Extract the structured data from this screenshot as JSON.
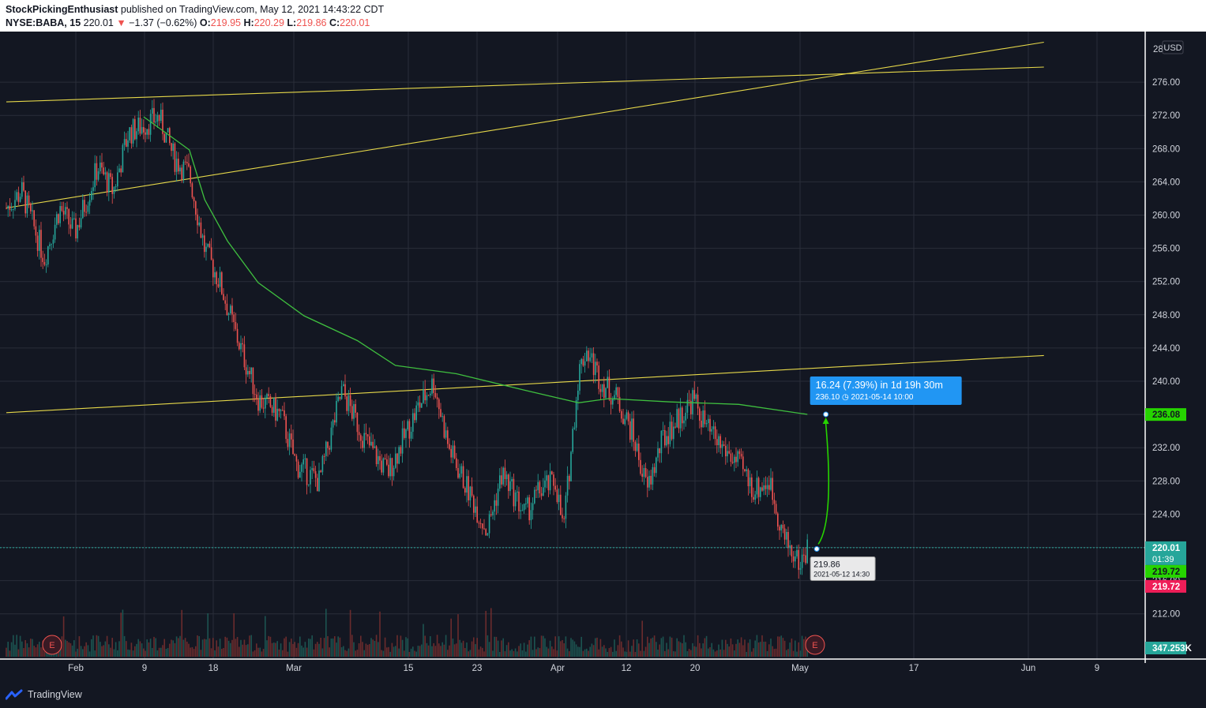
{
  "header": {
    "publisher": "StockPickingEnthusiast",
    "published_text": "published on TradingView.com, May 12, 2021 14:43:22 CDT",
    "symbol": "NYSE:BABA, 15",
    "last": "220.01",
    "change": "−1.37 (−0.62%)",
    "o_label": "O:",
    "o_value": "219.95",
    "h_label": "H:",
    "h_value": "220.29",
    "l_label": "L:",
    "l_value": "219.86",
    "c_label": "C:",
    "c_value": "220.01"
  },
  "price_axis": {
    "currency": "USD",
    "ticks": [
      "28",
      "276.00",
      "272.00",
      "268.00",
      "264.00",
      "260.00",
      "256.00",
      "252.00",
      "248.00",
      "244.00",
      "240.00",
      "236.00",
      "232.00",
      "228.00",
      "224.00",
      "220.00",
      "216.00",
      "212.00"
    ]
  },
  "badges": {
    "target": "236.08",
    "last_price": "220.01",
    "countdown": "01:39",
    "green_level": "219.72",
    "red_level": "219.72",
    "volume": "347.253K"
  },
  "time_axis": {
    "ticks": [
      "Feb",
      "9",
      "18",
      "Mar",
      "15",
      "23",
      "Apr",
      "12",
      "20",
      "May",
      "17",
      "Jun",
      "9"
    ]
  },
  "annotations": {
    "projection_main": "16.24 (7.39%) in 1d 19h 30m",
    "projection_sub": "236.10 ◷ 2021-05-14  10:00",
    "cursor_price": "219.86",
    "cursor_time": "2021-05-12 14:30",
    "earnings_marker": "E"
  },
  "footer": {
    "brand": "TradingView"
  },
  "colors": {
    "background": "#131722",
    "up": "#26a69a",
    "down": "#ef5350",
    "trendline": "#e6d84a",
    "moving_average": "#3fbf3f",
    "projection": "#26d400",
    "label_box": "#2196f3"
  },
  "chart_data": {
    "type": "candlestick",
    "symbol": "NYSE:BABA",
    "interval": "15",
    "ylim": [
      210,
      281
    ],
    "anchors": [
      {
        "date": "2021-01-27",
        "price": 261
      },
      {
        "date": "2021-01-29",
        "price": 263
      },
      {
        "date": "2021-02-01",
        "price": 255
      },
      {
        "date": "2021-02-03",
        "price": 261
      },
      {
        "date": "2021-02-05",
        "price": 258
      },
      {
        "date": "2021-02-08",
        "price": 266
      },
      {
        "date": "2021-02-10",
        "price": 263
      },
      {
        "date": "2021-02-12",
        "price": 270
      },
      {
        "date": "2021-02-16",
        "price": 272
      },
      {
        "date": "2021-02-18",
        "price": 267
      },
      {
        "date": "2021-02-20",
        "price": 265
      },
      {
        "date": "2021-02-22",
        "price": 256
      },
      {
        "date": "2021-02-24",
        "price": 252
      },
      {
        "date": "2021-02-26",
        "price": 246
      },
      {
        "date": "2021-03-01",
        "price": 238
      },
      {
        "date": "2021-03-04",
        "price": 236
      },
      {
        "date": "2021-03-06",
        "price": 230
      },
      {
        "date": "2021-03-09",
        "price": 228
      },
      {
        "date": "2021-03-12",
        "price": 239
      },
      {
        "date": "2021-03-15",
        "price": 233
      },
      {
        "date": "2021-03-18",
        "price": 229
      },
      {
        "date": "2021-03-22",
        "price": 237
      },
      {
        "date": "2021-03-24",
        "price": 240
      },
      {
        "date": "2021-03-26",
        "price": 232
      },
      {
        "date": "2021-03-29",
        "price": 226
      },
      {
        "date": "2021-03-31",
        "price": 222
      },
      {
        "date": "2021-04-02",
        "price": 229
      },
      {
        "date": "2021-04-05",
        "price": 224
      },
      {
        "date": "2021-04-07",
        "price": 227
      },
      {
        "date": "2021-04-09",
        "price": 228
      },
      {
        "date": "2021-04-10",
        "price": 222
      },
      {
        "date": "2021-04-12",
        "price": 241
      },
      {
        "date": "2021-04-13",
        "price": 244
      },
      {
        "date": "2021-04-15",
        "price": 240
      },
      {
        "date": "2021-04-17",
        "price": 238
      },
      {
        "date": "2021-04-19",
        "price": 234
      },
      {
        "date": "2021-04-21",
        "price": 227
      },
      {
        "date": "2021-04-23",
        "price": 233
      },
      {
        "date": "2021-04-27",
        "price": 238
      },
      {
        "date": "2021-04-29",
        "price": 234
      },
      {
        "date": "2021-05-01",
        "price": 232
      },
      {
        "date": "2021-05-03",
        "price": 230
      },
      {
        "date": "2021-05-05",
        "price": 227
      },
      {
        "date": "2021-05-07",
        "price": 228
      },
      {
        "date": "2021-05-09",
        "price": 221
      },
      {
        "date": "2021-05-11",
        "price": 218
      },
      {
        "date": "2021-05-12",
        "price": 220.01
      }
    ],
    "moving_average": [
      {
        "date": "2021-02-14",
        "price": 272
      },
      {
        "date": "2021-02-17",
        "price": 270
      },
      {
        "date": "2021-02-20",
        "price": 268
      },
      {
        "date": "2021-02-22",
        "price": 262
      },
      {
        "date": "2021-02-25",
        "price": 257
      },
      {
        "date": "2021-03-01",
        "price": 252
      },
      {
        "date": "2021-03-07",
        "price": 248
      },
      {
        "date": "2021-03-14",
        "price": 245
      },
      {
        "date": "2021-03-19",
        "price": 242
      },
      {
        "date": "2021-03-27",
        "price": 241
      },
      {
        "date": "2021-04-05",
        "price": 239
      },
      {
        "date": "2021-04-12",
        "price": 237.5
      },
      {
        "date": "2021-04-16",
        "price": 238
      },
      {
        "date": "2021-04-24",
        "price": 237.6
      },
      {
        "date": "2021-05-03",
        "price": 237.3
      },
      {
        "date": "2021-05-12",
        "price": 236.1
      }
    ],
    "trendlines": [
      {
        "from": {
          "date": "2021-01-27",
          "price": 273.8
        },
        "to": {
          "date": "2021-06-12",
          "price": 278.0
        }
      },
      {
        "from": {
          "date": "2021-01-27",
          "price": 261.0
        },
        "to": {
          "date": "2021-06-12",
          "price": 281.0
        }
      },
      {
        "from": {
          "date": "2021-01-27",
          "price": 236.3
        },
        "to": {
          "date": "2021-06-12",
          "price": 243.2
        }
      }
    ],
    "projection": {
      "from": {
        "date": "2021-05-12 14:30",
        "price": 219.86
      },
      "to": {
        "date": "2021-05-14 10:00",
        "price": 236.1
      },
      "change": 16.24,
      "change_percent": 7.39,
      "duration": "1d 19h 30m"
    },
    "earnings": [
      "2021-02-02",
      "2021-05-13"
    ],
    "last_volume": "347.253K"
  }
}
